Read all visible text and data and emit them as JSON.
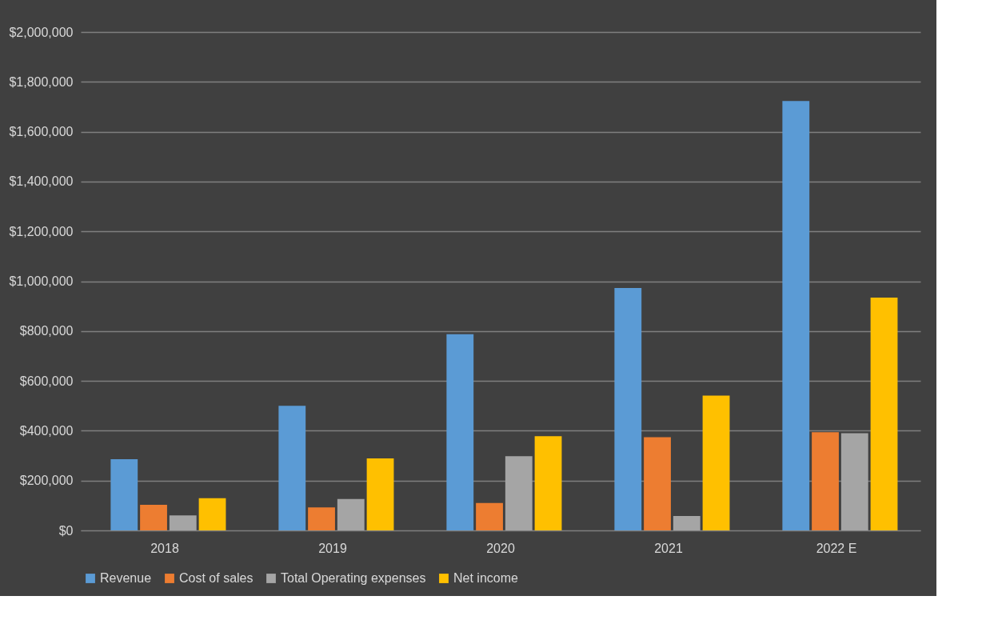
{
  "chart_data": {
    "type": "bar",
    "categories": [
      "2018",
      "2019",
      "2020",
      "2021",
      "2022 E"
    ],
    "series": [
      {
        "name": "Revenue",
        "color": "#5b9bd5",
        "values": [
          286000,
          500000,
          787000,
          973000,
          1723000
        ]
      },
      {
        "name": "Cost of sales",
        "color": "#ed7d31",
        "values": [
          103000,
          92000,
          110000,
          374000,
          394000
        ]
      },
      {
        "name": "Total Operating expenses",
        "color": "#a5a5a5",
        "values": [
          60000,
          126000,
          298000,
          58000,
          390000
        ]
      },
      {
        "name": "Net income",
        "color": "#ffc000",
        "values": [
          129000,
          289000,
          378000,
          541000,
          934000
        ]
      }
    ],
    "ylim": [
      0,
      2000000
    ],
    "yticks": [
      {
        "value": 0,
        "label": "$0"
      },
      {
        "value": 200000,
        "label": "$200,000"
      },
      {
        "value": 400000,
        "label": "$400,000"
      },
      {
        "value": 600000,
        "label": "$600,000"
      },
      {
        "value": 800000,
        "label": "$800,000"
      },
      {
        "value": 1000000,
        "label": "$1,000,000"
      },
      {
        "value": 1200000,
        "label": "$1,200,000"
      },
      {
        "value": 1400000,
        "label": "$1,400,000"
      },
      {
        "value": 1600000,
        "label": "$1,600,000"
      },
      {
        "value": 1800000,
        "label": "$1,800,000"
      },
      {
        "value": 2000000,
        "label": "$2,000,000"
      }
    ],
    "grid": "y",
    "legend": "bottom"
  }
}
